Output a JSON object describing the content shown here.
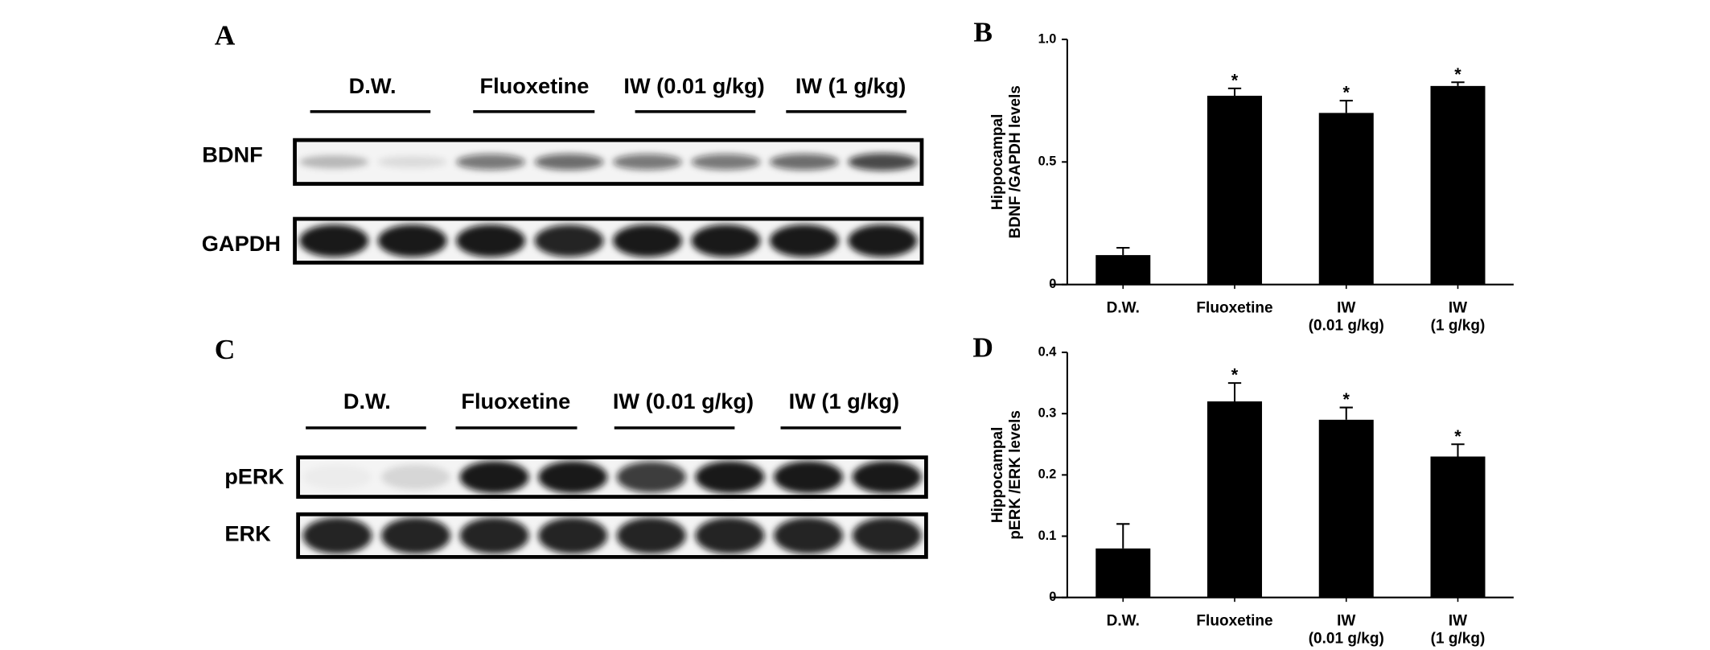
{
  "blots": [
    {
      "panel": "A",
      "groups": [
        "D.W.",
        "Fluoxetine",
        "IW (0.01 g/kg)",
        "IW (1 g/kg)"
      ],
      "rows": [
        "BDNF",
        "GAPDH"
      ]
    },
    {
      "panel": "C",
      "groups": [
        "D.W.",
        "Fluoxetine",
        "IW (0.01 g/kg)",
        "IW (1 g/kg)"
      ],
      "rows": [
        "pERK",
        "ERK"
      ]
    }
  ],
  "chart_data": [
    {
      "type": "bar",
      "panel": "B",
      "y_label": "Hippocampal\nBDNF /GAPDH levels",
      "categories": [
        "D.W.",
        "Fluoxetine",
        "IW\n(0.01 g/kg)",
        "IW\n(1 g/kg)"
      ],
      "values": [
        0.12,
        0.77,
        0.7,
        0.81
      ],
      "errors": [
        0.03,
        0.03,
        0.05,
        0.015
      ],
      "significance": [
        null,
        "*",
        "*",
        "*"
      ],
      "color": "#000000",
      "ylim": [
        0,
        1
      ],
      "yticks": [
        0,
        0.5,
        {
          "value": 1,
          "label": "1.0"
        }
      ]
    },
    {
      "type": "bar",
      "panel": "D",
      "y_label": "Hippocampal\npERK /ERK levels",
      "categories": [
        "D.W.",
        "Fluoxetine",
        "IW\n(0.01 g/kg)",
        "IW\n(1 g/kg)"
      ],
      "values": [
        0.08,
        0.32,
        0.29,
        0.23
      ],
      "errors": [
        0.04,
        0.03,
        0.02,
        0.02
      ],
      "significance": [
        null,
        "*",
        "*",
        "*"
      ],
      "color": "#000000",
      "ylim": [
        0,
        0.4
      ],
      "yticks": [
        0,
        0.1,
        0.2,
        0.3,
        0.4
      ]
    }
  ]
}
